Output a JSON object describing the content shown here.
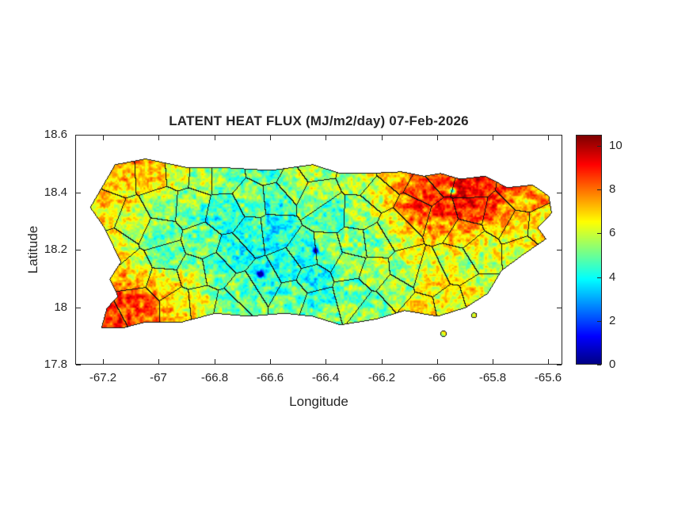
{
  "chart_data": {
    "type": "heatmap",
    "title": "LATENT HEAT FLUX (MJ/m2/day) 07-Feb-2026",
    "xlabel": "Longitude",
    "ylabel": "Latitude",
    "region": "Puerto Rico",
    "xlim": [
      -67.3,
      -65.55
    ],
    "ylim": [
      17.8,
      18.6
    ],
    "xticks": [
      -67.2,
      -67,
      -66.8,
      -66.6,
      -66.4,
      -66.2,
      -66,
      -65.8,
      -65.6
    ],
    "xtick_labels": [
      "-67.2",
      "-67",
      "-66.8",
      "-66.6",
      "-66.4",
      "-66.2",
      "-66",
      "-65.8",
      "-65.6"
    ],
    "yticks": [
      17.8,
      18,
      18.2,
      18.4,
      18.6
    ],
    "ytick_labels": [
      "17.8",
      "18",
      "18.2",
      "18.4",
      "18.6"
    ],
    "colormap": "jet",
    "grid_lines": false,
    "colorbar": {
      "min": 0,
      "max": 10.5,
      "ticks": [
        0,
        2,
        4,
        6,
        8,
        10
      ],
      "tick_labels": [
        "0",
        "2",
        "4",
        "6",
        "8",
        "10"
      ],
      "position": "right"
    },
    "grid": {
      "lon": [
        -67.3,
        -67.2,
        -67.1,
        -67.0,
        -66.9,
        -66.8,
        -66.7,
        -66.6,
        -66.5,
        -66.4,
        -66.3,
        -66.2,
        -66.1,
        -66.0,
        -65.9,
        -65.8,
        -65.7,
        -65.6
      ],
      "lat": [
        18.55,
        18.45,
        18.35,
        18.25,
        18.15,
        18.05,
        17.95,
        17.85
      ],
      "values": [
        [
          6.0,
          6.5,
          7.0,
          6.5,
          6.0,
          5.5,
          5.5,
          5.5,
          5.5,
          5.5,
          6.0,
          6.5,
          7.0,
          8.0,
          8.5,
          8.5,
          7.5,
          7.0
        ],
        [
          6.0,
          7.0,
          7.0,
          6.5,
          5.5,
          5.5,
          5.0,
          5.0,
          5.5,
          5.5,
          5.5,
          6.5,
          7.5,
          8.5,
          9.2,
          9.0,
          7.5,
          7.0
        ],
        [
          6.5,
          7.0,
          6.0,
          5.5,
          5.0,
          4.8,
          4.8,
          4.5,
          5.0,
          5.0,
          5.5,
          6.5,
          8.0,
          9.0,
          9.3,
          8.5,
          7.0,
          7.5
        ],
        [
          6.0,
          6.5,
          5.5,
          5.0,
          4.6,
          4.5,
          4.4,
          4.4,
          4.6,
          5.0,
          5.2,
          6.0,
          7.0,
          7.5,
          7.0,
          6.5,
          6.5,
          7.5
        ],
        [
          7.0,
          7.5,
          6.5,
          6.0,
          5.2,
          4.6,
          4.4,
          4.2,
          4.4,
          4.6,
          5.0,
          5.5,
          6.0,
          6.2,
          6.0,
          5.8,
          6.0,
          6.5
        ],
        [
          7.5,
          8.5,
          8.2,
          7.5,
          6.8,
          5.5,
          5.0,
          4.6,
          4.6,
          4.6,
          5.0,
          5.2,
          5.6,
          6.5,
          7.0,
          6.2,
          6.0,
          6.0
        ],
        [
          7.0,
          8.0,
          8.3,
          7.8,
          7.2,
          6.5,
          5.5,
          5.2,
          5.2,
          5.5,
          5.8,
          5.8,
          6.0,
          6.8,
          7.0,
          6.5,
          6.0,
          6.0
        ],
        [
          6.5,
          7.0,
          7.5,
          7.2,
          6.8,
          6.2,
          5.5,
          5.2,
          5.2,
          5.5,
          5.5,
          5.5,
          6.0,
          6.5,
          6.5,
          6.0,
          6.0,
          6.0
        ]
      ]
    },
    "region_outline_lonlat": [
      [
        -67.16,
        18.5
      ],
      [
        -67.05,
        18.52
      ],
      [
        -66.9,
        18.49
      ],
      [
        -66.77,
        18.49
      ],
      [
        -66.6,
        18.48
      ],
      [
        -66.45,
        18.5
      ],
      [
        -66.35,
        18.47
      ],
      [
        -66.25,
        18.47
      ],
      [
        -66.13,
        18.475
      ],
      [
        -66.05,
        18.46
      ],
      [
        -65.99,
        18.47
      ],
      [
        -65.92,
        18.45
      ],
      [
        -65.83,
        18.46
      ],
      [
        -65.75,
        18.42
      ],
      [
        -65.66,
        18.43
      ],
      [
        -65.6,
        18.39
      ],
      [
        -65.59,
        18.33
      ],
      [
        -65.64,
        18.28
      ],
      [
        -65.61,
        18.24
      ],
      [
        -65.7,
        18.18
      ],
      [
        -65.77,
        18.13
      ],
      [
        -65.82,
        18.05
      ],
      [
        -65.9,
        18.0
      ],
      [
        -66.0,
        17.97
      ],
      [
        -66.12,
        17.99
      ],
      [
        -66.22,
        17.96
      ],
      [
        -66.35,
        17.94
      ],
      [
        -66.45,
        17.97
      ],
      [
        -66.55,
        17.98
      ],
      [
        -66.68,
        17.97
      ],
      [
        -66.8,
        17.98
      ],
      [
        -66.92,
        17.95
      ],
      [
        -67.05,
        17.95
      ],
      [
        -67.13,
        17.93
      ],
      [
        -67.21,
        17.93
      ],
      [
        -67.19,
        18.0
      ],
      [
        -67.15,
        18.04
      ],
      [
        -67.18,
        18.1
      ],
      [
        -67.14,
        18.16
      ],
      [
        -67.17,
        18.22
      ],
      [
        -67.2,
        18.28
      ],
      [
        -67.25,
        18.35
      ],
      [
        -67.22,
        18.4
      ],
      [
        -67.19,
        18.45
      ]
    ],
    "islets": [
      [
        -65.98,
        17.91,
        0.012
      ],
      [
        -65.87,
        17.975,
        0.01
      ]
    ],
    "cool_spots": [
      [
        -66.64,
        18.12,
        5.0
      ],
      [
        -66.44,
        18.2,
        4.0
      ],
      [
        -65.95,
        18.41,
        5.0
      ]
    ],
    "boundaries": "municipality borders (black)"
  },
  "style_colors": {
    "background": "#ffffff",
    "axis_color": "#262626",
    "boundary_color": "#111111"
  }
}
